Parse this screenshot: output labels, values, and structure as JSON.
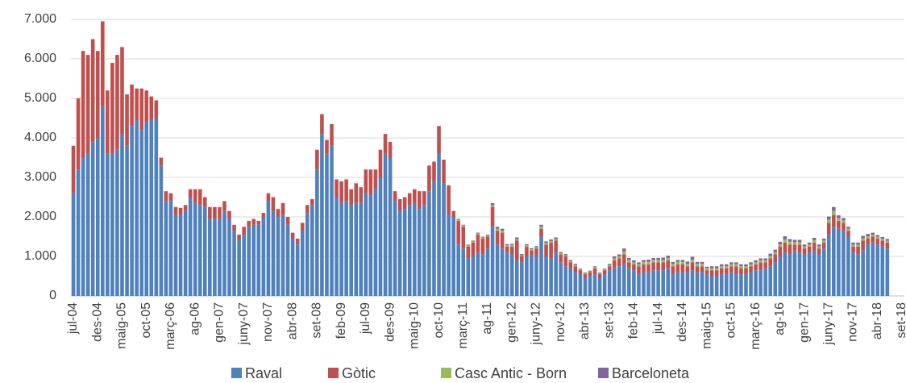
{
  "chart_data": {
    "type": "stacked_bar",
    "categories": [
      "jul-04",
      null,
      null,
      null,
      null,
      "des-04",
      null,
      null,
      null,
      null,
      "maig-05",
      null,
      null,
      null,
      null,
      "oct-05",
      null,
      null,
      null,
      null,
      "març-06",
      null,
      null,
      null,
      null,
      "ag-06",
      null,
      null,
      null,
      null,
      "gen-07",
      null,
      null,
      null,
      null,
      "juny-07",
      null,
      null,
      null,
      null,
      "nov-07",
      null,
      null,
      null,
      null,
      "abr-08",
      null,
      null,
      null,
      null,
      "set-08",
      null,
      null,
      null,
      null,
      "feb-09",
      null,
      null,
      null,
      null,
      "jul-09",
      null,
      null,
      null,
      null,
      "des-09",
      null,
      null,
      null,
      null,
      "maig-10",
      null,
      null,
      null,
      null,
      "oct-10",
      null,
      null,
      null,
      null,
      "març-11",
      null,
      null,
      null,
      null,
      "ag-11",
      null,
      null,
      null,
      null,
      "gen-12",
      null,
      null,
      null,
      null,
      "juny-12",
      null,
      null,
      null,
      null,
      "nov-12",
      null,
      null,
      null,
      null,
      "abr-13",
      null,
      null,
      null,
      null,
      "set-13",
      null,
      null,
      null,
      null,
      "feb-14",
      null,
      null,
      null,
      null,
      "jul-14",
      null,
      null,
      null,
      null,
      "des-14",
      null,
      null,
      null,
      null,
      "maig-15",
      null,
      null,
      null,
      null,
      "oct-15",
      null,
      null,
      null,
      null,
      "març-16",
      null,
      null,
      null,
      null,
      "ag-16",
      null,
      null,
      null,
      null,
      "gen-17",
      null,
      null,
      null,
      null,
      "juny-17",
      null,
      null,
      null,
      null,
      "nov-17",
      null,
      null,
      null,
      null,
      "abr-18",
      null,
      null,
      null,
      null,
      "set-18"
    ],
    "series": [
      {
        "name": "Raval",
        "color": "#4f81bd",
        "values": [
          2600,
          3200,
          3500,
          3600,
          3900,
          4000,
          4800,
          3600,
          3600,
          3700,
          4100,
          3800,
          4300,
          4450,
          4200,
          4400,
          4450,
          4500,
          3300,
          2400,
          2400,
          2050,
          2050,
          2150,
          2500,
          2350,
          2300,
          2250,
          1950,
          1950,
          1950,
          2150,
          1950,
          1650,
          1400,
          1550,
          1750,
          1800,
          1800,
          2000,
          2400,
          2150,
          2000,
          2050,
          1800,
          1450,
          1300,
          1650,
          2100,
          2300,
          3200,
          4100,
          3600,
          3800,
          2500,
          2350,
          2400,
          2300,
          2350,
          2350,
          2600,
          2550,
          2700,
          3000,
          3600,
          3500,
          2400,
          2150,
          2200,
          2300,
          2350,
          2200,
          2300,
          2650,
          2900,
          3600,
          2850,
          2050,
          2000,
          1300,
          1200,
          950,
          1000,
          1100,
          1050,
          1200,
          1750,
          1300,
          1200,
          1100,
          1050,
          900,
          850,
          1000,
          1050,
          1000,
          1500,
          1000,
          950,
          1100,
          850,
          750,
          700,
          600,
          550,
          450,
          500,
          550,
          450,
          550,
          650,
          700,
          750,
          800,
          700,
          650,
          550,
          600,
          600,
          650,
          650,
          650,
          700,
          550,
          600,
          600,
          600,
          650,
          600,
          600,
          550,
          500,
          500,
          550,
          550,
          600,
          550,
          550,
          550,
          600,
          650,
          650,
          700,
          750,
          850,
          1000,
          1100,
          1050,
          1150,
          1100,
          1050,
          1100,
          1150,
          1050,
          1200,
          1550,
          1750,
          1700,
          1650,
          1500,
          1100,
          1050,
          1150,
          1300,
          1350,
          1300,
          1250,
          1200,
          null,
          null,
          null
        ]
      },
      {
        "name": "Gòtic",
        "color": "#c0504d",
        "values": [
          1200,
          1800,
          2700,
          2500,
          2600,
          2200,
          2150,
          1600,
          2300,
          2400,
          2200,
          1300,
          1050,
          800,
          1050,
          800,
          600,
          450,
          200,
          250,
          200,
          200,
          180,
          150,
          200,
          350,
          400,
          250,
          300,
          300,
          300,
          250,
          200,
          150,
          150,
          200,
          150,
          150,
          100,
          100,
          200,
          350,
          200,
          300,
          200,
          150,
          150,
          200,
          200,
          150,
          500,
          500,
          350,
          550,
          450,
          550,
          550,
          400,
          500,
          400,
          600,
          650,
          500,
          700,
          500,
          400,
          250,
          300,
          300,
          300,
          350,
          450,
          350,
          650,
          500,
          700,
          600,
          750,
          150,
          600,
          550,
          300,
          350,
          450,
          400,
          300,
          500,
          350,
          400,
          150,
          200,
          500,
          150,
          250,
          100,
          200,
          200,
          300,
          400,
          300,
          200,
          250,
          150,
          150,
          100,
          100,
          100,
          150,
          100,
          100,
          100,
          200,
          200,
          250,
          150,
          150,
          200,
          200,
          200,
          200,
          200,
          200,
          200,
          200,
          200,
          200,
          150,
          200,
          150,
          150,
          100,
          150,
          150,
          150,
          150,
          150,
          200,
          150,
          150,
          150,
          150,
          200,
          150,
          200,
          200,
          250,
          250,
          250,
          150,
          200,
          150,
          150,
          200,
          150,
          150,
          300,
          300,
          200,
          200,
          150,
          150,
          200,
          250,
          150,
          150,
          150,
          150,
          150,
          null,
          null,
          null
        ]
      },
      {
        "name": "Casc Antic - Born",
        "color": "#9bbb59",
        "values": [
          0,
          0,
          0,
          0,
          0,
          0,
          0,
          0,
          0,
          0,
          0,
          0,
          0,
          0,
          0,
          0,
          0,
          0,
          0,
          0,
          0,
          0,
          0,
          0,
          0,
          0,
          0,
          0,
          0,
          0,
          0,
          0,
          0,
          0,
          0,
          0,
          0,
          0,
          0,
          0,
          0,
          0,
          0,
          0,
          0,
          0,
          0,
          0,
          0,
          0,
          0,
          0,
          0,
          0,
          0,
          0,
          0,
          0,
          0,
          0,
          0,
          0,
          0,
          0,
          0,
          0,
          0,
          0,
          0,
          0,
          0,
          0,
          0,
          0,
          0,
          0,
          0,
          0,
          0,
          30,
          30,
          30,
          30,
          30,
          30,
          30,
          50,
          50,
          50,
          30,
          40,
          40,
          30,
          30,
          30,
          30,
          50,
          40,
          40,
          40,
          30,
          30,
          30,
          30,
          20,
          20,
          20,
          30,
          20,
          20,
          30,
          50,
          50,
          80,
          60,
          50,
          50,
          60,
          60,
          60,
          60,
          60,
          60,
          60,
          60,
          60,
          60,
          70,
          60,
          60,
          50,
          50,
          50,
          50,
          50,
          50,
          50,
          50,
          50,
          50,
          50,
          50,
          50,
          60,
          60,
          60,
          80,
          70,
          60,
          60,
          50,
          50,
          60,
          50,
          50,
          80,
          100,
          70,
          60,
          50,
          50,
          50,
          60,
          60,
          50,
          50,
          50,
          50,
          null,
          null,
          null
        ]
      },
      {
        "name": "Barceloneta",
        "color": "#8064a2",
        "values": [
          0,
          0,
          0,
          0,
          0,
          0,
          0,
          0,
          0,
          0,
          0,
          0,
          0,
          0,
          0,
          0,
          0,
          0,
          0,
          0,
          0,
          0,
          0,
          0,
          0,
          0,
          0,
          0,
          0,
          0,
          0,
          0,
          0,
          0,
          0,
          0,
          0,
          0,
          0,
          0,
          0,
          0,
          0,
          0,
          0,
          0,
          0,
          0,
          0,
          0,
          0,
          0,
          0,
          0,
          0,
          0,
          0,
          0,
          0,
          0,
          0,
          0,
          0,
          0,
          0,
          0,
          0,
          0,
          0,
          0,
          0,
          0,
          0,
          0,
          0,
          0,
          0,
          0,
          0,
          20,
          20,
          20,
          20,
          20,
          20,
          20,
          50,
          50,
          50,
          30,
          30,
          40,
          30,
          30,
          30,
          30,
          50,
          40,
          40,
          40,
          30,
          30,
          30,
          30,
          20,
          20,
          20,
          20,
          20,
          20,
          30,
          50,
          50,
          70,
          50,
          50,
          50,
          50,
          60,
          50,
          50,
          60,
          60,
          50,
          50,
          50,
          60,
          70,
          50,
          50,
          40,
          50,
          50,
          50,
          50,
          50,
          50,
          50,
          50,
          50,
          50,
          50,
          50,
          60,
          60,
          60,
          80,
          70,
          60,
          60,
          50,
          50,
          60,
          50,
          50,
          80,
          100,
          70,
          60,
          50,
          50,
          50,
          60,
          60,
          50,
          40,
          40,
          40,
          null,
          null,
          null
        ]
      }
    ],
    "ylim": [
      0,
      7000
    ],
    "yticks": [
      0,
      {
        "value": 1000,
        "label": "1.000"
      },
      {
        "value": 2000,
        "label": "2.000"
      },
      {
        "value": 3000,
        "label": "3.000"
      },
      {
        "value": 4000,
        "label": "4.000"
      },
      {
        "value": 5000,
        "label": "5.000"
      },
      {
        "value": 6000,
        "label": "6.000"
      },
      {
        "value": 7000,
        "label": "7.000"
      }
    ],
    "grid": true,
    "legend": "bottom"
  }
}
